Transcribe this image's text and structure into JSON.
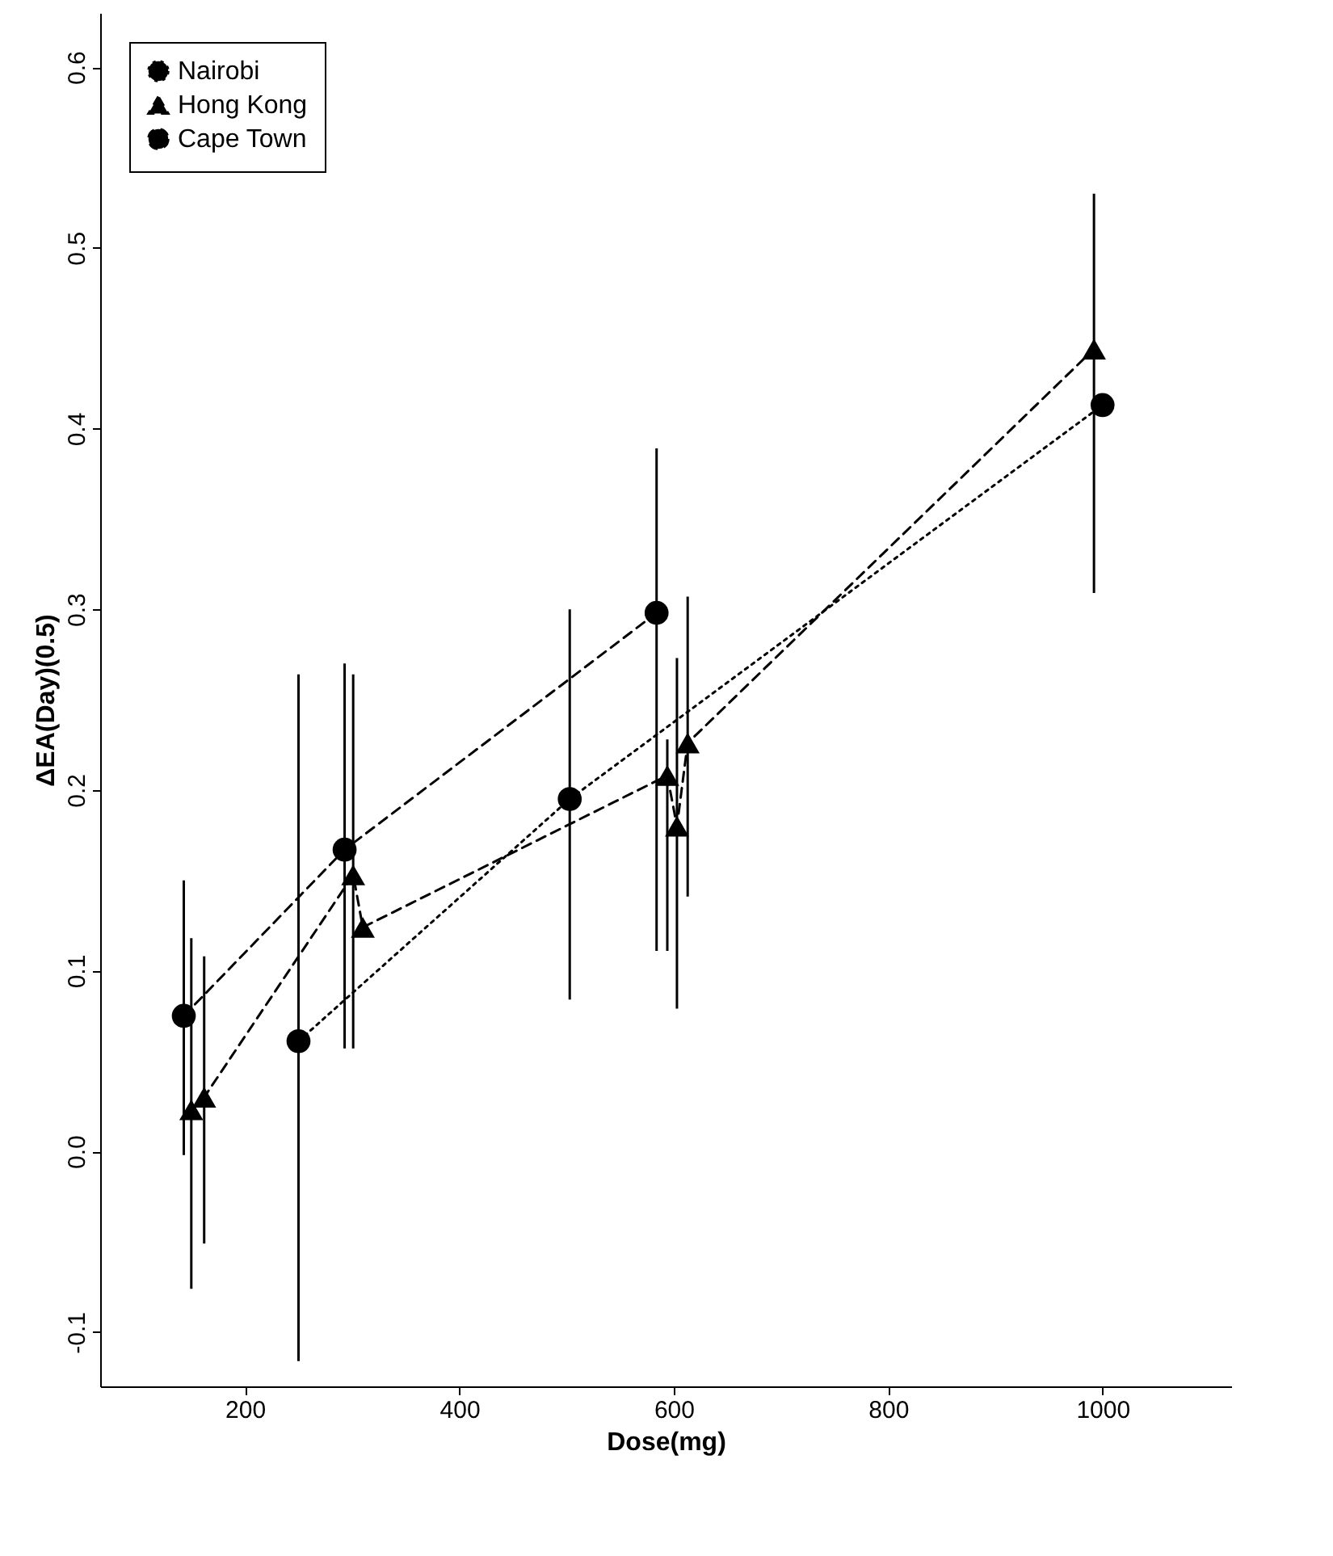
{
  "chart_data": {
    "type": "line",
    "xlabel": "Dose(mg)",
    "ylabel": "ΔEA(Day)(0.5)",
    "xlim": [
      65,
      1120
    ],
    "xticks": [
      200,
      400,
      600,
      800,
      1000
    ],
    "ylim": [
      -0.13,
      0.63
    ],
    "yticks": [
      -0.1,
      {
        "value": 0,
        "label": "0.0"
      },
      0.1,
      0.2,
      0.3,
      0.4,
      0.5,
      0.6
    ],
    "grid": false,
    "legend": "top left",
    "series": [
      {
        "name": "Nairobi",
        "color": "#000000",
        "marker": "circle",
        "line_style": "dotted",
        "x": [
          250,
          503,
          1000
        ],
        "values": [
          0.061,
          0.195,
          0.413
        ],
        "errors": [
          [
            -0.116,
            0.264
          ],
          [
            0.084,
            0.3
          ],
          null
        ]
      },
      {
        "name": "Hong Kong",
        "color": "#000000",
        "marker": "triangle",
        "line_style": "dashed",
        "x": [
          150,
          162,
          301,
          310,
          594,
          603,
          613,
          992
        ],
        "values": [
          0.023,
          0.03,
          0.153,
          0.124,
          0.208,
          0.18,
          0.226,
          0.444
        ],
        "errors": [
          [
            -0.076,
            0.118
          ],
          [
            -0.051,
            0.108
          ],
          [
            0.057,
            0.264
          ],
          null,
          [
            0.111,
            0.228
          ],
          [
            0.079,
            0.273
          ],
          [
            0.141,
            0.307
          ],
          [
            0.309,
            0.53
          ]
        ]
      },
      {
        "name": "Cape Town",
        "color": "#000000",
        "marker": "circle",
        "line_style": "dashed",
        "x": [
          143,
          293,
          584
        ],
        "values": [
          0.075,
          0.167,
          0.298
        ],
        "errors": [
          [
            -0.002,
            0.15
          ],
          [
            0.057,
            0.27
          ],
          [
            0.111,
            0.389
          ]
        ]
      }
    ]
  }
}
